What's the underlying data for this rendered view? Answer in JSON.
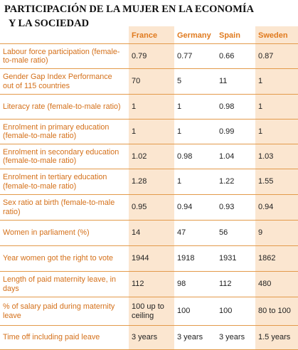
{
  "title": {
    "line1": "PARTICIPACIÓN DE LA MUJER EN LA ECONOMÍA",
    "line2": "Y LA SOCIEDAD"
  },
  "columns": [
    "France",
    "Germany",
    "Spain",
    "Sweden"
  ],
  "rows": [
    {
      "label": "Labour force participation (female-to-male ratio)",
      "values": [
        "0.79",
        "0.77",
        "0.66",
        "0.87"
      ]
    },
    {
      "label": "Gender Gap Index Performance out of 115 countries",
      "values": [
        "70",
        "5",
        "11",
        "1"
      ]
    },
    {
      "label": "Literacy rate (female-to-male ratio)",
      "values": [
        "1",
        "1",
        "0.98",
        "1"
      ]
    },
    {
      "label": "Enrolment in primary education (female-to-male ratio)",
      "values": [
        "1",
        "1",
        "0.99",
        "1"
      ]
    },
    {
      "label": "Enrolment in secondary education (female-to-male ratio)",
      "values": [
        "1.02",
        "0.98",
        "1.04",
        "1.03"
      ]
    },
    {
      "label": "Enrolment in tertiary education (female-to-male ratio)",
      "values": [
        "1.28",
        "1",
        "1.22",
        "1.55"
      ]
    },
    {
      "label": "Sex ratio at birth (female-to-male ratio)",
      "values": [
        "0.95",
        "0.94",
        "0.93",
        "0.94"
      ]
    },
    {
      "label": "Women in parliament (%)",
      "values": [
        "14",
        "47",
        "56",
        "9"
      ]
    },
    {
      "label": "Year women got the right to vote",
      "values": [
        "1944",
        "1918",
        "1931",
        "1862"
      ]
    },
    {
      "label": "Length of paid maternity leave, in days",
      "values": [
        "112",
        "98",
        "112",
        "480"
      ]
    },
    {
      "label": "% of salary paid during maternity leave",
      "values": [
        "100 up to ceiling",
        "100",
        "100",
        "80 to 100"
      ]
    },
    {
      "label": "Time off including paid leave",
      "values": [
        "3 years",
        "3 years",
        "3 years",
        "1.5 years"
      ]
    }
  ]
}
